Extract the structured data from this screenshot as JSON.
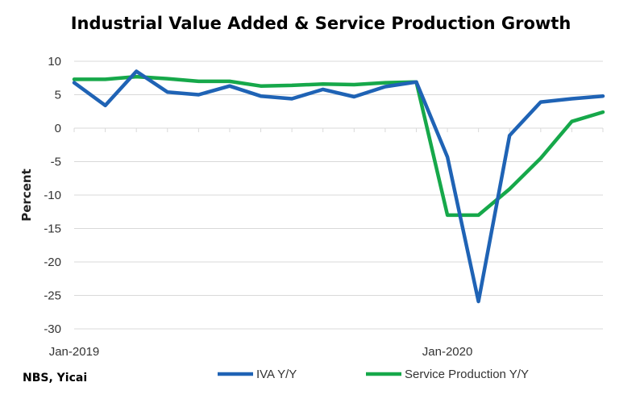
{
  "chart_data": {
    "type": "line",
    "title": "Industrial Value Added & Service Production Growth",
    "xlabel": "",
    "ylabel": "Percent",
    "source": "NBS, Yicai",
    "ylim": [
      -30,
      10
    ],
    "yticks": [
      10,
      5,
      0,
      -5,
      -10,
      -15,
      -20,
      -25,
      -30
    ],
    "x": [
      "2019-01",
      "2019-02",
      "2019-03",
      "2019-04",
      "2019-05",
      "2019-06",
      "2019-07",
      "2019-08",
      "2019-09",
      "2019-10",
      "2019-11",
      "2019-12",
      "2020-01",
      "2020-02",
      "2020-03",
      "2020-04",
      "2020-05",
      "2020-06"
    ],
    "xtick_labels": [
      {
        "x": "2019-01",
        "label": "Jan-2019"
      },
      {
        "x": "2020-01",
        "label": "Jan-2020"
      }
    ],
    "grid": true,
    "legend_position": "bottom",
    "series": [
      {
        "name": "IVA Y/Y",
        "color": "#1f63b5",
        "values": [
          6.8,
          3.4,
          8.5,
          5.4,
          5.0,
          6.3,
          4.8,
          4.4,
          5.8,
          4.7,
          6.2,
          6.9,
          -4.3,
          -25.9,
          -1.1,
          3.9,
          4.4,
          4.8
        ]
      },
      {
        "name": "Service Production Y/Y",
        "color": "#16a84a",
        "values": [
          7.3,
          7.3,
          7.7,
          7.4,
          7.0,
          7.0,
          6.3,
          6.4,
          6.6,
          6.5,
          6.8,
          6.9,
          -13.0,
          -13.0,
          -9.1,
          -4.5,
          1.0,
          2.4
        ]
      }
    ]
  }
}
